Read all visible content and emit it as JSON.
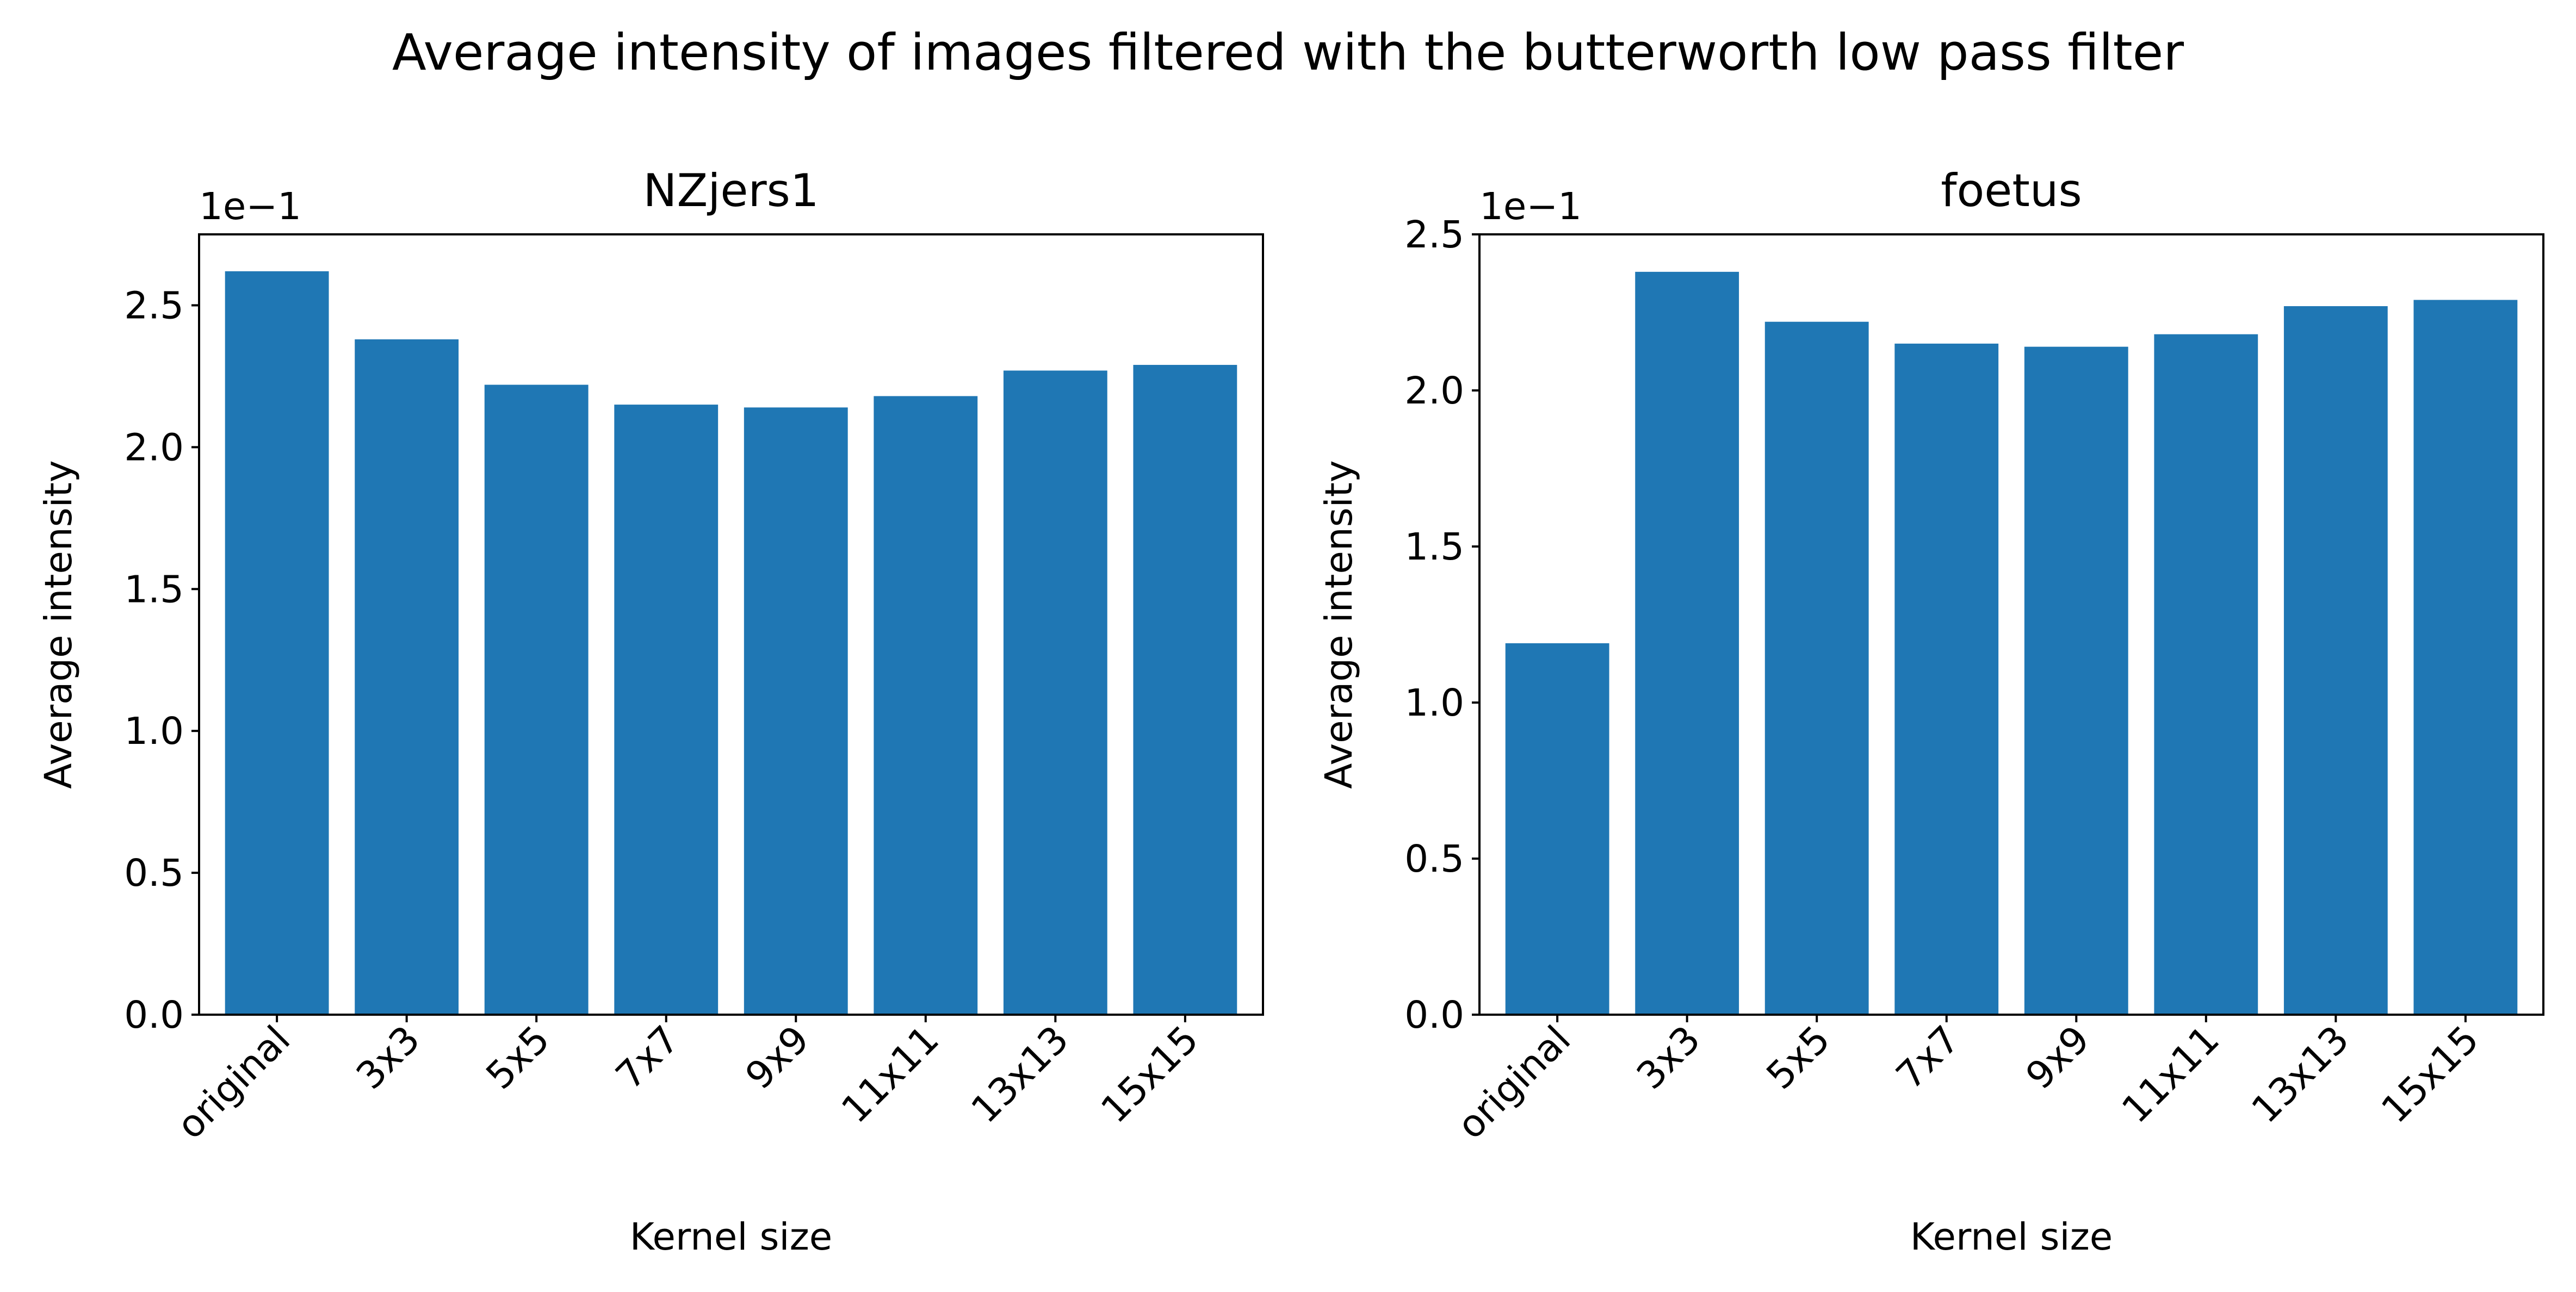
{
  "figure": {
    "suptitle": "Average intensity of images filtered with the butterworth low pass filter"
  },
  "colors": {
    "bar": "#1f77b4",
    "axis": "#000000",
    "background": "#ffffff"
  },
  "chart_data": [
    {
      "type": "bar",
      "title": "NZjers1",
      "xlabel": "Kernel size",
      "ylabel": "Average intensity",
      "offset_text": "1e−1",
      "categories": [
        "original",
        "3x3",
        "5x5",
        "7x7",
        "9x9",
        "11x11",
        "13x13",
        "15x15"
      ],
      "values": [
        0.262,
        0.238,
        0.222,
        0.215,
        0.214,
        0.218,
        0.227,
        0.229
      ],
      "ylim": [
        0,
        0.275
      ],
      "yticks": [
        0,
        0.05,
        0.1,
        0.15,
        0.2,
        0.25
      ],
      "ytick_labels": [
        "0.0",
        "0.5",
        "1.0",
        "1.5",
        "2.0",
        "2.5"
      ],
      "grid": false,
      "legend": "none"
    },
    {
      "type": "bar",
      "title": "foetus",
      "xlabel": "Kernel size",
      "ylabel": "Average intensity",
      "offset_text": "1e−1",
      "categories": [
        "original",
        "3x3",
        "5x5",
        "7x7",
        "9x9",
        "11x11",
        "13x13",
        "15x15"
      ],
      "values": [
        0.119,
        0.238,
        0.222,
        0.215,
        0.214,
        0.218,
        0.227,
        0.229
      ],
      "ylim": [
        0,
        0.25
      ],
      "yticks": [
        0,
        0.05,
        0.1,
        0.15,
        0.2,
        0.25
      ],
      "ytick_labels": [
        "0.0",
        "0.5",
        "1.0",
        "1.5",
        "2.0",
        "2.5"
      ],
      "grid": false,
      "legend": "none"
    }
  ]
}
